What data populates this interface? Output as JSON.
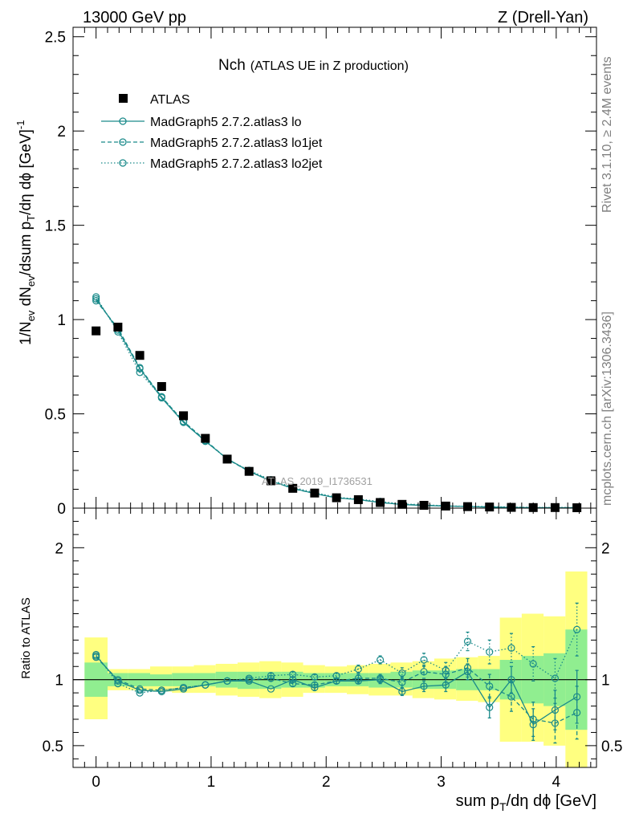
{
  "header": {
    "left": "13000 GeV pp",
    "right": "Z (Drell-Yan)"
  },
  "side_labels": {
    "rivet": "Rivet 3.1.10, ≥ 2.4M events",
    "mcplots": "mcplots.cern.ch [arXiv:1306.3436]"
  },
  "analysis_tag": "ATLAS_2019_I1736531",
  "colors": {
    "mc": "#1a8a8a",
    "data": "#000000",
    "band_inner": "#90ee90",
    "band_outer": "#ffff80"
  },
  "chart_data": [
    {
      "type": "line",
      "title": "Nch",
      "subtitle": "(ATLAS UE in Z production)",
      "xlabel": "sum p_T/dη dϕ [GeV]",
      "ylabel": "1/N_ev dN_ev/dsum p_T/dη dϕ [GeV]^-1",
      "xlim": [
        -0.2,
        4.35
      ],
      "ylim": [
        0,
        2.55
      ],
      "x_ticks": [
        0,
        1,
        2,
        3,
        4
      ],
      "y_ticks": [
        "0",
        "0.5",
        "1",
        "1.5",
        "2",
        "2.5"
      ],
      "legend_position": "top-left",
      "x": [
        0,
        0.19,
        0.38,
        0.57,
        0.76,
        0.95,
        1.14,
        1.33,
        1.52,
        1.71,
        1.9,
        2.09,
        2.28,
        2.47,
        2.66,
        2.85,
        3.04,
        3.23,
        3.42,
        3.61,
        3.8,
        3.99,
        4.18
      ],
      "series": [
        {
          "name": "ATLAS",
          "style": "markers",
          "values": [
            0.94,
            0.96,
            0.81,
            0.645,
            0.49,
            0.37,
            0.26,
            0.195,
            0.145,
            0.105,
            0.08,
            0.055,
            0.045,
            0.03,
            0.02,
            0.015,
            0.011,
            0.008,
            0.006,
            0.004,
            0.003,
            0.003,
            0.002
          ]
        },
        {
          "name": "MadGraph5 2.7.2.atlas3 lo",
          "style": "solid",
          "values": [
            1.11,
            0.945,
            0.74,
            0.585,
            0.455,
            0.355,
            0.262,
            0.196,
            0.143,
            0.105,
            0.077,
            0.055,
            0.045,
            0.03,
            0.019,
            0.014,
            0.011,
            0.009,
            0.005,
            0.004,
            0.002,
            0.002,
            0.002
          ]
        },
        {
          "name": "MadGraph5 2.7.2.atlas3 lo1jet",
          "style": "dashed",
          "values": [
            1.1,
            0.955,
            0.745,
            0.59,
            0.46,
            0.36,
            0.26,
            0.195,
            0.147,
            0.103,
            0.078,
            0.054,
            0.045,
            0.03,
            0.02,
            0.016,
            0.011,
            0.009,
            0.006,
            0.004,
            0.002,
            0.002,
            0.002
          ]
        },
        {
          "name": "MadGraph5 2.7.2.atlas3 lo2jet",
          "style": "dotted",
          "values": [
            1.12,
            0.935,
            0.72,
            0.59,
            0.46,
            0.355,
            0.26,
            0.2,
            0.15,
            0.11,
            0.082,
            0.058,
            0.048,
            0.035,
            0.022,
            0.018,
            0.012,
            0.01,
            0.008,
            0.006,
            0.004,
            0.004,
            0.003
          ]
        }
      ]
    },
    {
      "type": "line",
      "ylabel": "Ratio to ATLAS",
      "xlim": [
        -0.2,
        4.35
      ],
      "ylim": [
        0.335,
        2.3
      ],
      "y_ticks": [
        "0.5",
        "1",
        "2"
      ],
      "reference_line": 1,
      "bands": {
        "x_edges": [
          -0.1,
          0.1,
          0.28,
          0.47,
          0.66,
          0.85,
          1.04,
          1.23,
          1.42,
          1.61,
          1.8,
          1.99,
          2.18,
          2.37,
          2.56,
          2.75,
          2.94,
          3.13,
          3.32,
          3.51,
          3.7,
          3.89,
          4.08,
          4.27
        ],
        "inner": [
          [
            0.87,
            1.13
          ],
          [
            0.95,
            1.05
          ],
          [
            0.95,
            1.05
          ],
          [
            0.95,
            1.04
          ],
          [
            0.95,
            1.05
          ],
          [
            0.95,
            1.05
          ],
          [
            0.94,
            1.06
          ],
          [
            0.93,
            1.06
          ],
          [
            0.93,
            1.06
          ],
          [
            0.94,
            1.06
          ],
          [
            0.94,
            1.05
          ],
          [
            0.95,
            1.05
          ],
          [
            0.95,
            1.05
          ],
          [
            0.94,
            1.05
          ],
          [
            0.94,
            1.06
          ],
          [
            0.93,
            1.07
          ],
          [
            0.93,
            1.07
          ],
          [
            0.92,
            1.08
          ],
          [
            0.92,
            1.08
          ],
          [
            0.85,
            1.15
          ],
          [
            0.82,
            1.18
          ],
          [
            0.8,
            1.2
          ],
          [
            0.62,
            1.38
          ]
        ],
        "outer": [
          [
            0.7,
            1.32
          ],
          [
            0.92,
            1.08
          ],
          [
            0.92,
            1.08
          ],
          [
            0.91,
            1.1
          ],
          [
            0.9,
            1.1
          ],
          [
            0.9,
            1.11
          ],
          [
            0.88,
            1.12
          ],
          [
            0.87,
            1.13
          ],
          [
            0.86,
            1.14
          ],
          [
            0.87,
            1.13
          ],
          [
            0.9,
            1.11
          ],
          [
            0.9,
            1.1
          ],
          [
            0.89,
            1.11
          ],
          [
            0.88,
            1.12
          ],
          [
            0.88,
            1.13
          ],
          [
            0.86,
            1.14
          ],
          [
            0.85,
            1.16
          ],
          [
            0.84,
            1.17
          ],
          [
            0.83,
            1.18
          ],
          [
            0.53,
            1.47
          ],
          [
            0.53,
            1.5
          ],
          [
            0.5,
            1.48
          ],
          [
            0.3,
            1.82
          ]
        ]
      },
      "series": [
        {
          "name": "MadGraph5 2.7.2.atlas3 lo",
          "style": "solid",
          "values": [
            1.18,
            0.99,
            0.92,
            0.91,
            0.93,
            0.96,
            0.99,
            0.99,
            0.93,
            1.0,
            0.94,
            0.99,
            0.99,
            1.0,
            0.91,
            0.95,
            0.96,
            1.06,
            0.79,
            1.0,
            0.66,
            0.77,
            0.87
          ],
          "errors": [
            0.01,
            0.01,
            0.01,
            0.01,
            0.01,
            0.01,
            0.01,
            0.01,
            0.01,
            0.02,
            0.02,
            0.02,
            0.02,
            0.03,
            0.03,
            0.04,
            0.05,
            0.06,
            0.08,
            0.1,
            0.12,
            0.15,
            0.2
          ]
        },
        {
          "name": "MadGraph5 2.7.2.atlas3 lo1jet",
          "style": "dashed",
          "values": [
            1.17,
            1.0,
            0.93,
            0.92,
            0.94,
            0.96,
            0.99,
            1.0,
            1.01,
            0.97,
            0.96,
            0.99,
            1.01,
            1.01,
            0.98,
            1.06,
            1.04,
            1.09,
            0.95,
            0.87,
            0.7,
            0.67,
            0.75
          ],
          "errors": [
            0.01,
            0.01,
            0.01,
            0.01,
            0.01,
            0.01,
            0.01,
            0.01,
            0.02,
            0.02,
            0.02,
            0.02,
            0.03,
            0.03,
            0.04,
            0.05,
            0.06,
            0.07,
            0.09,
            0.11,
            0.13,
            0.15,
            0.2
          ]
        },
        {
          "name": "MadGraph5 2.7.2.atlas3 lo2jet",
          "style": "dotted",
          "values": [
            1.19,
            0.97,
            0.9,
            0.92,
            0.94,
            0.96,
            0.99,
            1.01,
            1.03,
            1.04,
            1.02,
            1.03,
            1.08,
            1.15,
            1.05,
            1.15,
            1.07,
            1.29,
            1.21,
            1.24,
            1.12,
            1.01,
            1.38
          ],
          "errors": [
            0.01,
            0.01,
            0.01,
            0.01,
            0.01,
            0.01,
            0.01,
            0.01,
            0.02,
            0.02,
            0.02,
            0.02,
            0.03,
            0.03,
            0.04,
            0.05,
            0.06,
            0.07,
            0.09,
            0.11,
            0.13,
            0.15,
            0.2
          ]
        }
      ]
    }
  ]
}
